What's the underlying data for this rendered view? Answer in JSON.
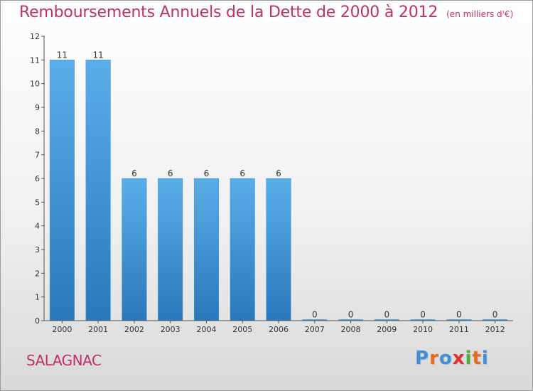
{
  "header": {
    "title": "Remboursements Annuels de la Dette de 2000 à 2012",
    "unit": "(en milliers d'€)"
  },
  "footer": {
    "commune": "SALAGNAC",
    "logo": {
      "text": "Proxiti",
      "colors": [
        "#3f8fd8",
        "#e86a1a",
        "#3f8fd8",
        "#e23030",
        "#4caf3c",
        "#e86a1a",
        "#3f8fd8"
      ]
    }
  },
  "chart_data": {
    "type": "bar",
    "title": "Remboursements Annuels de la Dette de 2000 à 2012",
    "subtitle": "(en milliers d'€)",
    "xlabel": "",
    "ylabel": "",
    "categories": [
      "2000",
      "2001",
      "2002",
      "2003",
      "2004",
      "2005",
      "2006",
      "2007",
      "2008",
      "2009",
      "2010",
      "2011",
      "2012"
    ],
    "values": [
      11,
      11,
      6,
      6,
      6,
      6,
      6,
      0,
      0,
      0,
      0,
      0,
      0
    ],
    "data_labels": [
      "11",
      "11",
      "6",
      "6",
      "6",
      "6",
      "6",
      "0",
      "0",
      "0",
      "0",
      "0",
      "0"
    ],
    "ylim": [
      0,
      12
    ],
    "yticks": [
      0,
      1,
      2,
      3,
      4,
      5,
      6,
      7,
      8,
      9,
      10,
      11,
      12
    ],
    "ytick_labels": [
      "0",
      "1",
      "2",
      "3",
      "4",
      "5",
      "6",
      "7",
      "8",
      "9",
      "10",
      "11",
      "12"
    ],
    "grid": false,
    "colors": {
      "bar_top": "#5aaee8",
      "bar_bottom": "#2a78bb",
      "axis": "#555555",
      "text": "#333333"
    }
  }
}
